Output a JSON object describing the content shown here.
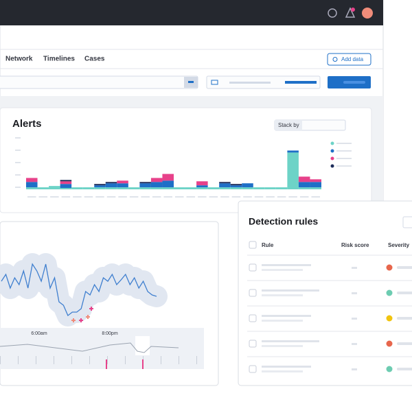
{
  "nav": {
    "tabs": [
      "Network",
      "Timelines",
      "Cases"
    ],
    "add_data": "Add data"
  },
  "alerts": {
    "title": "Alerts",
    "stack_by": "Stack by",
    "chart": {
      "type": "bar",
      "ylim": [
        0,
        80
      ],
      "series": [
        {
          "color": "#6dd3c7",
          "values": [
            3,
            3,
            5,
            2,
            3,
            3,
            3,
            3,
            3,
            3,
            3,
            3,
            3,
            3,
            3,
            3,
            3,
            3,
            3,
            3,
            3,
            3,
            3,
            55,
            3,
            3
          ]
        },
        {
          "color": "#1e6fc7",
          "values": [
            8,
            0,
            0,
            6,
            0,
            0,
            3,
            6,
            6,
            0,
            6,
            8,
            10,
            0,
            0,
            3,
            0,
            6,
            3,
            6,
            0,
            0,
            0,
            3,
            8,
            8
          ]
        },
        {
          "color": "#e7418a",
          "values": [
            6,
            0,
            0,
            4,
            0,
            0,
            0,
            0,
            4,
            0,
            0,
            6,
            10,
            0,
            0,
            6,
            0,
            0,
            0,
            0,
            0,
            0,
            0,
            0,
            8,
            4
          ]
        },
        {
          "color": "#1e2d5a",
          "values": [
            0,
            0,
            0,
            2,
            0,
            0,
            2,
            2,
            0,
            0,
            2,
            0,
            0,
            0,
            0,
            0,
            0,
            2,
            2,
            0,
            0,
            0,
            0,
            0,
            0,
            0
          ]
        }
      ]
    }
  },
  "timeline": {
    "chart": {
      "type": "line",
      "ylim": [
        0,
        100
      ],
      "color": "#3f7fcf",
      "values": [
        60,
        70,
        50,
        65,
        55,
        75,
        50,
        85,
        75,
        60,
        85,
        50,
        65,
        30,
        25,
        10,
        15,
        15,
        20,
        45,
        40,
        55,
        45,
        65,
        60,
        70,
        55,
        62,
        70,
        55,
        65,
        50,
        60,
        45,
        40,
        38
      ]
    },
    "time_labels": [
      "6:00am",
      "8:00pm"
    ]
  },
  "detection_rules": {
    "title": "Detection rules",
    "columns": [
      "Rule",
      "Risk score",
      "Severity"
    ],
    "severity_colors": [
      "#e7664c",
      "#6dccb1",
      "#f1c40f",
      "#e7664c",
      "#6dccb1"
    ]
  }
}
